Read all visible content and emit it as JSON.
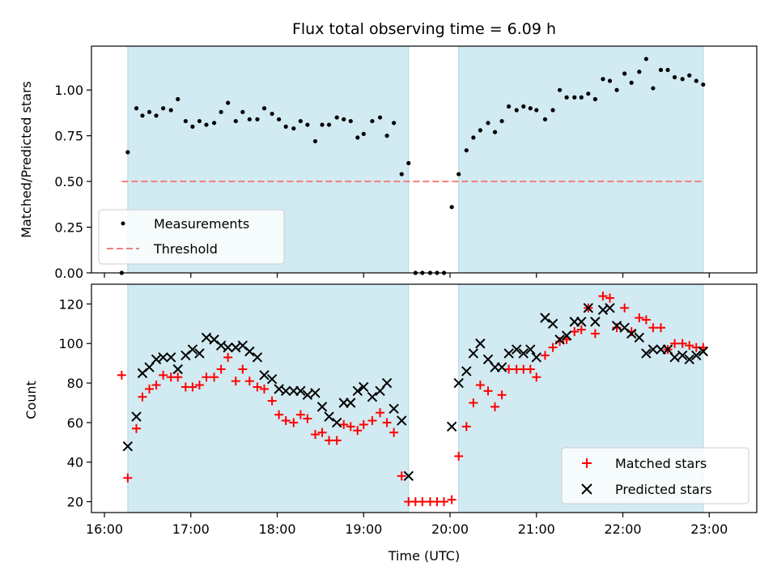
{
  "chart_data": [
    {
      "type": "scatter",
      "title": "Flux total observing time = 6.09 h",
      "xlabel": "",
      "ylabel": "Matched/Predicted stars",
      "xlim": [
        15.85,
        23.55
      ],
      "ylim": [
        0,
        1.24
      ],
      "yticks": [
        0.0,
        0.25,
        0.5,
        0.75,
        1.0
      ],
      "ytick_labels": [
        "0.00",
        "0.25",
        "0.50",
        "0.75",
        "1.00"
      ],
      "xticks": [
        16,
        17,
        18,
        19,
        20,
        21,
        22,
        23
      ],
      "shaded_spans": [
        [
          16.27,
          19.52
        ],
        [
          20.1,
          22.93
        ]
      ],
      "shade_color": "#add8e6",
      "legend": {
        "position": "lower-left"
      },
      "series": [
        {
          "name": "Measurements",
          "marker": "dot",
          "color": "#000000",
          "x": [
            16.2,
            16.27,
            16.37,
            16.44,
            16.52,
            16.6,
            16.68,
            16.77,
            16.85,
            16.94,
            17.02,
            17.1,
            17.18,
            17.27,
            17.35,
            17.43,
            17.52,
            17.6,
            17.68,
            17.77,
            17.85,
            17.94,
            18.02,
            18.1,
            18.19,
            18.27,
            18.35,
            18.44,
            18.52,
            18.6,
            18.69,
            18.77,
            18.85,
            18.93,
            19.0,
            19.1,
            19.19,
            19.27,
            19.35,
            19.44,
            19.52,
            19.6,
            19.68,
            19.77,
            19.85,
            19.93,
            20.02,
            20.1,
            20.19,
            20.27,
            20.35,
            20.44,
            20.52,
            20.6,
            20.68,
            20.77,
            20.85,
            20.93,
            21.0,
            21.1,
            21.19,
            21.27,
            21.35,
            21.44,
            21.52,
            21.6,
            21.68,
            21.77,
            21.85,
            21.93,
            22.02,
            22.1,
            22.19,
            22.27,
            22.35,
            22.44,
            22.52,
            22.6,
            22.69,
            22.77,
            22.85,
            22.93
          ],
          "y": [
            0.0,
            0.66,
            0.9,
            0.86,
            0.88,
            0.86,
            0.9,
            0.89,
            0.95,
            0.83,
            0.8,
            0.83,
            0.81,
            0.82,
            0.88,
            0.93,
            0.83,
            0.88,
            0.84,
            0.84,
            0.9,
            0.87,
            0.84,
            0.8,
            0.79,
            0.83,
            0.81,
            0.72,
            0.81,
            0.81,
            0.85,
            0.84,
            0.83,
            0.74,
            0.76,
            0.83,
            0.85,
            0.75,
            0.82,
            0.54,
            0.6,
            0.0,
            0.0,
            0.0,
            0.0,
            0.0,
            0.36,
            0.54,
            0.67,
            0.74,
            0.78,
            0.82,
            0.77,
            0.83,
            0.91,
            0.89,
            0.91,
            0.9,
            0.89,
            0.84,
            0.89,
            1.0,
            0.96,
            0.96,
            0.96,
            0.98,
            0.95,
            1.06,
            1.05,
            1.0,
            1.09,
            1.04,
            1.1,
            1.17,
            1.01,
            1.11,
            1.11,
            1.07,
            1.06,
            1.08,
            1.05,
            1.03
          ]
        },
        {
          "name": "Threshold",
          "marker": "dashed-line",
          "color": "#f08080",
          "x": [
            16.2,
            22.93
          ],
          "y": [
            0.5,
            0.5
          ]
        }
      ]
    },
    {
      "type": "scatter",
      "title": "",
      "xlabel": "Time (UTC)",
      "ylabel": "Count",
      "xlim": [
        15.85,
        23.55
      ],
      "ylim": [
        14.5,
        130
      ],
      "yticks": [
        20,
        40,
        60,
        80,
        100,
        120
      ],
      "ytick_labels": [
        "20",
        "40",
        "60",
        "80",
        "100",
        "120"
      ],
      "xticks": [
        16,
        17,
        18,
        19,
        20,
        21,
        22,
        23
      ],
      "xtick_labels": [
        "16:00",
        "17:00",
        "18:00",
        "19:00",
        "20:00",
        "21:00",
        "22:00",
        "23:00"
      ],
      "shaded_spans": [
        [
          16.27,
          19.52
        ],
        [
          20.1,
          22.93
        ]
      ],
      "shade_color": "#add8e6",
      "legend": {
        "position": "lower-right"
      },
      "series": [
        {
          "name": "Matched stars",
          "marker": "plus",
          "color": "#ff0000",
          "x": [
            16.2,
            16.27,
            16.37,
            16.44,
            16.52,
            16.6,
            16.68,
            16.77,
            16.85,
            16.94,
            17.02,
            17.1,
            17.18,
            17.27,
            17.35,
            17.43,
            17.52,
            17.6,
            17.68,
            17.77,
            17.85,
            17.94,
            18.02,
            18.1,
            18.19,
            18.27,
            18.35,
            18.44,
            18.52,
            18.6,
            18.69,
            18.77,
            18.85,
            18.93,
            19.0,
            19.1,
            19.19,
            19.27,
            19.35,
            19.44,
            19.52,
            19.6,
            19.68,
            19.77,
            19.85,
            19.93,
            20.02,
            20.1,
            20.19,
            20.27,
            20.35,
            20.44,
            20.52,
            20.6,
            20.68,
            20.77,
            20.85,
            20.93,
            21.0,
            21.1,
            21.19,
            21.27,
            21.35,
            21.44,
            21.52,
            21.6,
            21.68,
            21.77,
            21.85,
            21.93,
            22.02,
            22.1,
            22.19,
            22.27,
            22.35,
            22.44,
            22.52,
            22.6,
            22.69,
            22.77,
            22.85,
            22.93
          ],
          "y": [
            84,
            32,
            57,
            73,
            77,
            79,
            84,
            83,
            83,
            78,
            78,
            79,
            83,
            83,
            87,
            93,
            81,
            87,
            81,
            78,
            77,
            71,
            64,
            61,
            60,
            64,
            62,
            54,
            55,
            51,
            51,
            59,
            58,
            56,
            59,
            61,
            65,
            60,
            55,
            33,
            20,
            20,
            20,
            20,
            20,
            20,
            21,
            43,
            58,
            70,
            79,
            76,
            68,
            74,
            87,
            87,
            87,
            87,
            83,
            94,
            98,
            101,
            102,
            106,
            107,
            118,
            105,
            124,
            123,
            108,
            118,
            106,
            113,
            112,
            108,
            108,
            97,
            100,
            100,
            99,
            98,
            98
          ]
        },
        {
          "name": "Predicted stars",
          "marker": "x",
          "color": "#000000",
          "x": [
            16.27,
            16.37,
            16.44,
            16.52,
            16.6,
            16.68,
            16.77,
            16.85,
            16.94,
            17.02,
            17.1,
            17.18,
            17.27,
            17.35,
            17.43,
            17.52,
            17.6,
            17.68,
            17.77,
            17.85,
            17.94,
            18.02,
            18.1,
            18.19,
            18.27,
            18.35,
            18.44,
            18.52,
            18.6,
            18.69,
            18.77,
            18.85,
            18.93,
            19.0,
            19.1,
            19.19,
            19.27,
            19.35,
            19.44,
            19.52,
            20.02,
            20.1,
            20.19,
            20.27,
            20.35,
            20.44,
            20.52,
            20.6,
            20.68,
            20.77,
            20.85,
            20.93,
            21.0,
            21.1,
            21.19,
            21.27,
            21.35,
            21.44,
            21.52,
            21.6,
            21.68,
            21.77,
            21.85,
            21.93,
            22.02,
            22.1,
            22.19,
            22.27,
            22.35,
            22.44,
            22.52,
            22.6,
            22.69,
            22.77,
            22.85,
            22.93
          ],
          "y": [
            48,
            63,
            85,
            88,
            92,
            93,
            93,
            87,
            94,
            97,
            95,
            103,
            102,
            99,
            98,
            98,
            99,
            96,
            93,
            84,
            82,
            77,
            76,
            76,
            76,
            74,
            75,
            68,
            63,
            60,
            70,
            70,
            76,
            78,
            73,
            76,
            80,
            67,
            61,
            33,
            58,
            80,
            86,
            95,
            100,
            92,
            88,
            88,
            95,
            97,
            95,
            97,
            93,
            113,
            110,
            102,
            104,
            111,
            111,
            118,
            111,
            117,
            118,
            109,
            108,
            105,
            103,
            95,
            97,
            97,
            97,
            93,
            94,
            92,
            94,
            96
          ]
        }
      ]
    }
  ]
}
